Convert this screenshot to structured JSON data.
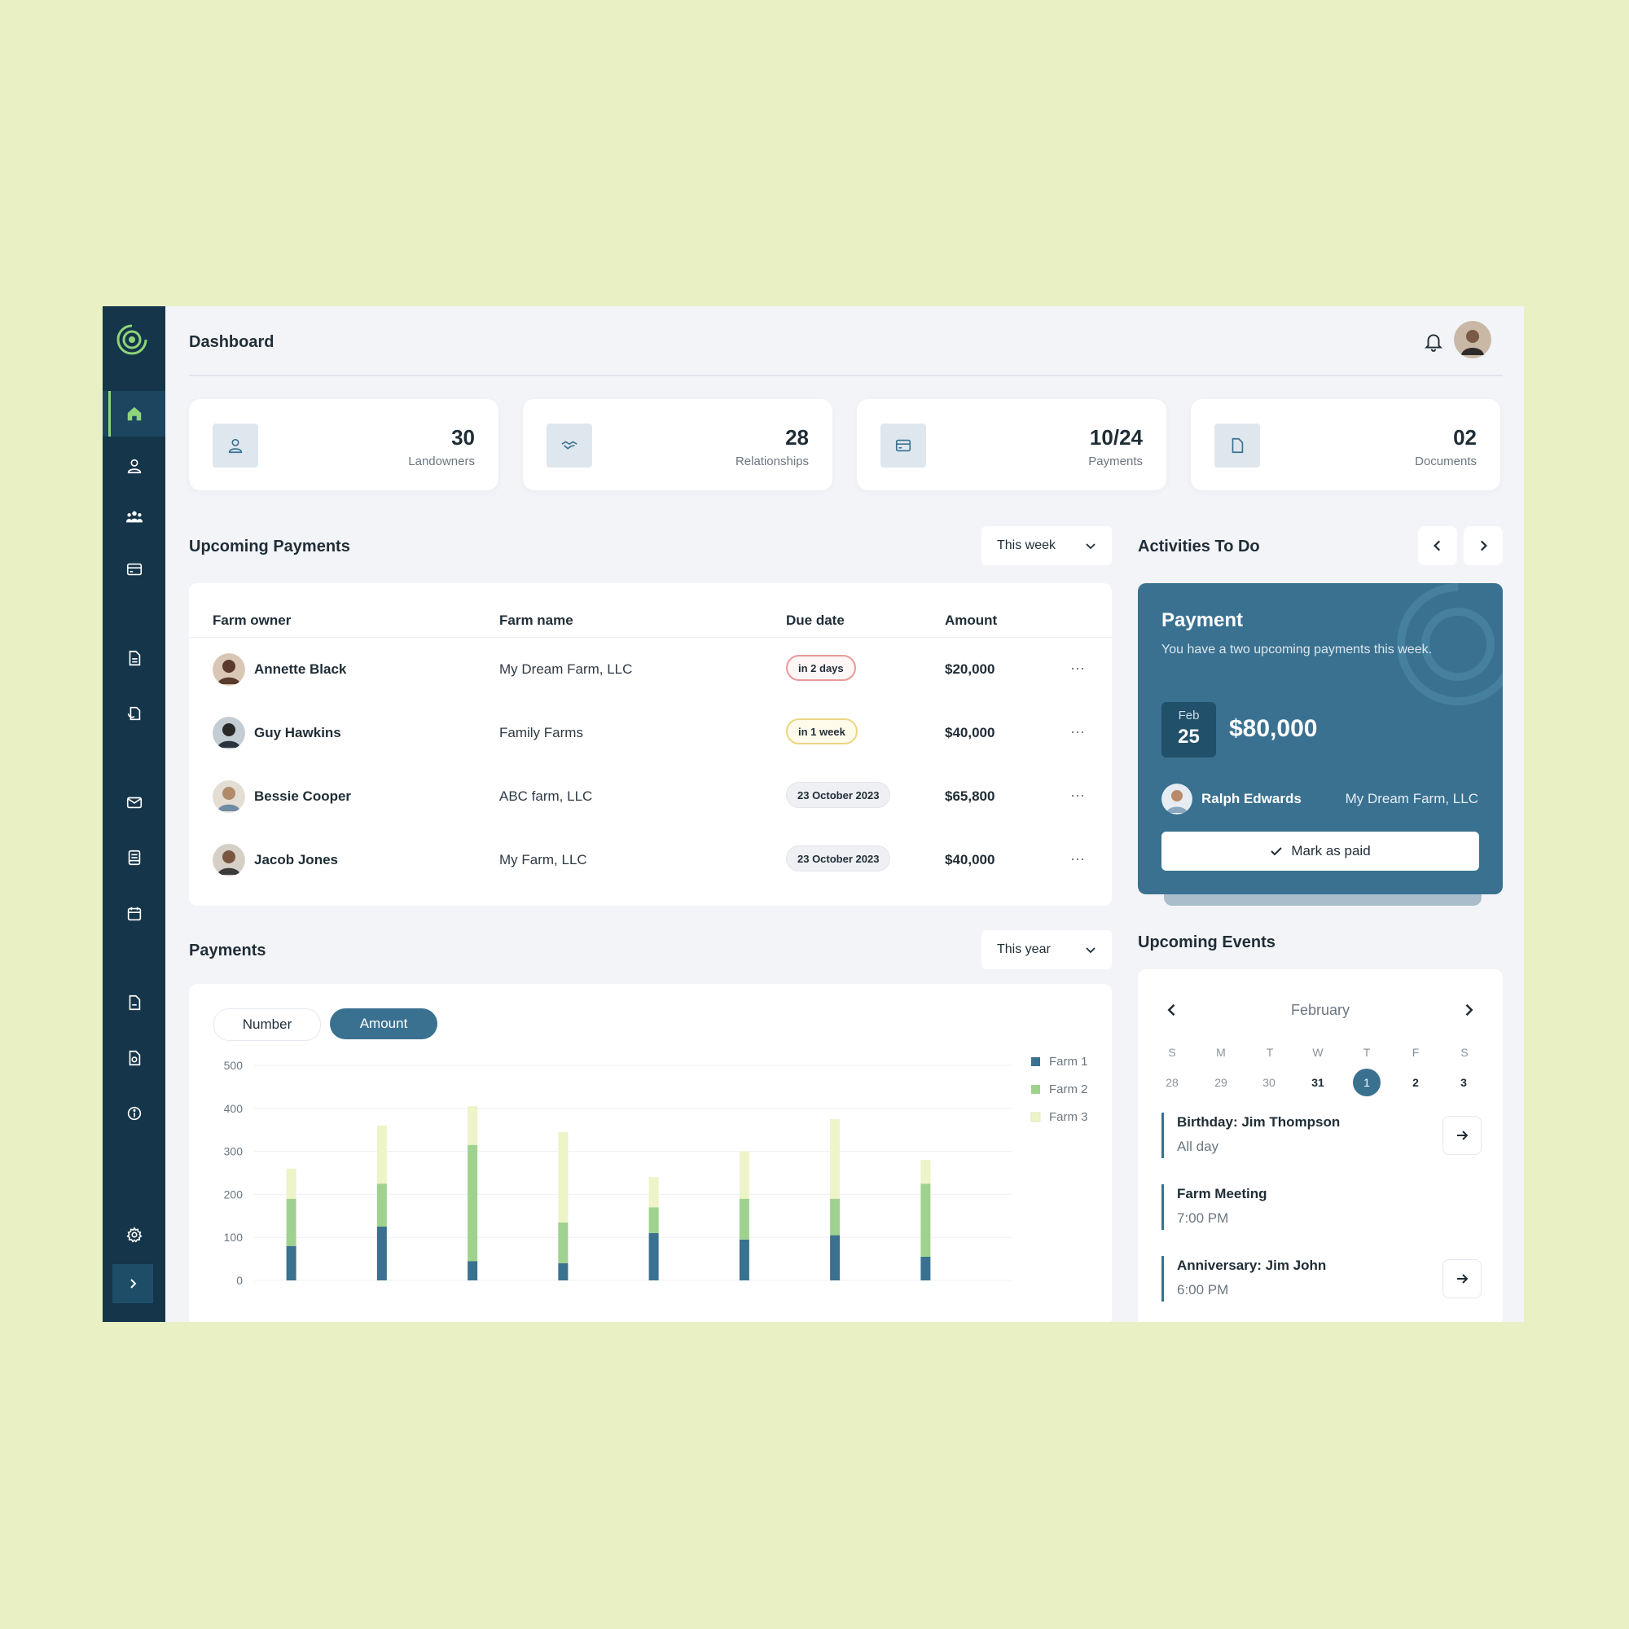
{
  "header": {
    "title": "Dashboard"
  },
  "stats": [
    {
      "value": "30",
      "label": "Landowners",
      "icon": "user-icon"
    },
    {
      "value": "28",
      "label": "Relationships",
      "icon": "handshake-icon"
    },
    {
      "value": "10/24",
      "label": "Payments",
      "icon": "credit-card-icon"
    },
    {
      "value": "02",
      "label": "Documents",
      "icon": "document-icon"
    }
  ],
  "upcoming_payments": {
    "title": "Upcoming Payments",
    "filter": "This week",
    "columns": [
      "Farm owner",
      "Farm name",
      "Due date",
      "Amount"
    ],
    "rows": [
      {
        "owner": "Annette Black",
        "farm": "My Dream Farm, LLC",
        "due": "in 2 days",
        "amount": "$20,000"
      },
      {
        "owner": "Guy Hawkins",
        "farm": "Family Farms",
        "due": "in 1 week",
        "amount": "$40,000"
      },
      {
        "owner": "Bessie Cooper",
        "farm": "ABC farm, LLC",
        "due": "23 October 2023",
        "amount": "$65,800"
      },
      {
        "owner": "Jacob Jones",
        "farm": "My Farm, LLC",
        "due": "23 October 2023",
        "amount": "$40,000"
      }
    ],
    "more_glyph": "⋯"
  },
  "activities": {
    "title": "Activities To Do",
    "card": {
      "title": "Payment",
      "description": "You have a two upcoming payments this week.",
      "month": "Feb",
      "day": "25",
      "amount": "$80,000",
      "person": "Ralph Edwards",
      "farm": "My Dream Farm, LLC",
      "button": "Mark as paid"
    }
  },
  "payments": {
    "title": "Payments",
    "filter": "This year",
    "toggle_number": "Number",
    "toggle_amount": "Amount"
  },
  "chart_data": {
    "type": "bar",
    "stacked": true,
    "ylim": [
      0,
      500
    ],
    "yticks": [
      0,
      100,
      200,
      300,
      400,
      500
    ],
    "categories": [
      "",
      "",
      "",
      "",
      "",
      "",
      "",
      ""
    ],
    "series": [
      {
        "name": "Farm 1",
        "color": "#3a7190",
        "values": [
          80,
          125,
          45,
          40,
          110,
          95,
          105,
          55
        ]
      },
      {
        "name": "Farm 2",
        "color": "#9fd28e",
        "values": [
          110,
          100,
          270,
          95,
          60,
          95,
          85,
          170
        ]
      },
      {
        "name": "Farm 3",
        "color": "#eef3c8",
        "values": [
          70,
          135,
          90,
          210,
          70,
          110,
          185,
          55
        ]
      }
    ],
    "grid": true,
    "legend": "top-right"
  },
  "events": {
    "title": "Upcoming Events",
    "month": "February",
    "dow": [
      "S",
      "M",
      "T",
      "W",
      "T",
      "F",
      "S"
    ],
    "days": [
      "28",
      "29",
      "30",
      "31",
      "1",
      "2",
      "3"
    ],
    "items": [
      {
        "title": "Birthday: Jim Thompson",
        "sub": "All day"
      },
      {
        "title": "Farm Meeting",
        "sub": "7:00 PM"
      },
      {
        "title": "Anniversary: Jim John",
        "sub": "6:00 PM"
      }
    ]
  }
}
